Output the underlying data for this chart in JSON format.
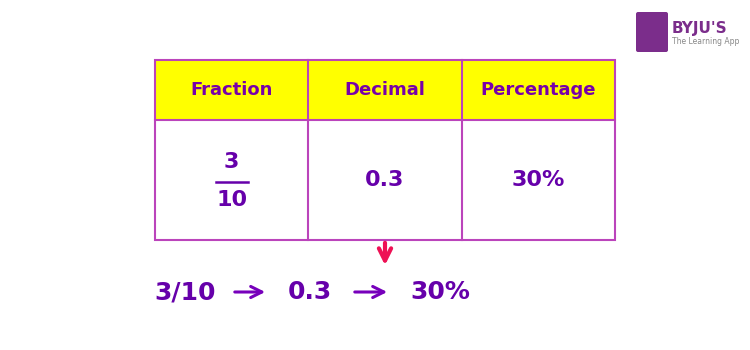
{
  "bg_color": "#ffffff",
  "table_border_color": "#bb44bb",
  "header_bg": "#ffff00",
  "header_text_color": "#7700aa",
  "cell_bg": "#ffffff",
  "cell_text_color": "#6600aa",
  "headers": [
    "Fraction",
    "Decimal",
    "Percentage"
  ],
  "fraction_num": "3",
  "fraction_den": "10",
  "decimal_val": "0.3",
  "percent_val": "30%",
  "bottom_fraction": "3/10",
  "bottom_decimal": "0.3",
  "bottom_percent": "30%",
  "arrow_color_red": "#ee1155",
  "arrow_color_purple": "#7700bb",
  "font_size_header": 13,
  "font_size_cell": 16,
  "font_size_bottom": 18,
  "byju_bg": "#7b2d8b",
  "byju_text": "#ffffff",
  "byju_label": "BYJU'S",
  "byju_sub": "The Learning App"
}
